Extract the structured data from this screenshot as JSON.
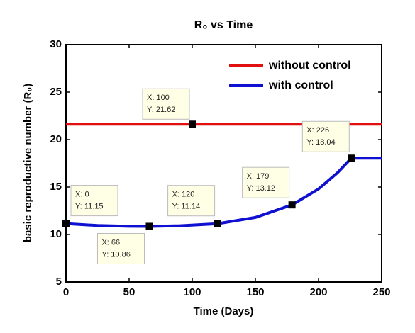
{
  "chart_data": {
    "type": "line",
    "title": "R₀ vs Time",
    "xlabel": "Time (Days)",
    "ylabel": "basic reproductive number (R₀)",
    "xlim": [
      0,
      250
    ],
    "xticks": [
      0,
      50,
      100,
      150,
      200,
      250
    ],
    "ylim": [
      5,
      30
    ],
    "yticks": [
      5,
      10,
      15,
      20,
      25,
      30
    ],
    "legend": "upper right",
    "series": [
      {
        "name": "without control",
        "color": "#e01010",
        "x": [
          0,
          250
        ],
        "values": [
          21.62,
          21.62
        ]
      },
      {
        "name": "with control",
        "color": "#1010d0",
        "x": [
          0,
          25,
          50,
          66,
          90,
          120,
          150,
          179,
          200,
          215,
          226,
          250
        ],
        "values": [
          11.15,
          10.95,
          10.87,
          10.86,
          10.92,
          11.14,
          11.8,
          13.12,
          14.8,
          16.5,
          18.04,
          18.04
        ]
      }
    ],
    "datatips": [
      {
        "x": 0,
        "y": 11.15,
        "x_label": "X: 0",
        "y_label": "Y: 11.15"
      },
      {
        "x": 66,
        "y": 10.86,
        "x_label": "X: 66",
        "y_label": "Y: 10.86"
      },
      {
        "x": 100,
        "y": 21.62,
        "x_label": "X: 100",
        "y_label": "Y: 21.62"
      },
      {
        "x": 120,
        "y": 11.14,
        "x_label": "X: 120",
        "y_label": "Y: 11.14"
      },
      {
        "x": 179,
        "y": 13.12,
        "x_label": "X: 179",
        "y_label": "Y: 13.12"
      },
      {
        "x": 226,
        "y": 18.04,
        "x_label": "X: 226",
        "y_label": "Y: 18.04"
      }
    ]
  }
}
